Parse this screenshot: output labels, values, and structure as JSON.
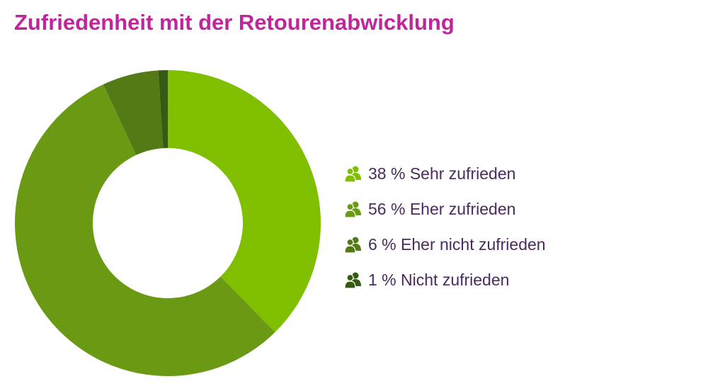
{
  "chart_data": {
    "type": "pie",
    "title": "Zufriedenheit mit der Retourenabwicklung",
    "categories": [
      "Sehr zufrieden",
      "Eher zufrieden",
      "Eher nicht zufrieden",
      "Nicht zufrieden"
    ],
    "values": [
      38,
      56,
      6,
      1
    ],
    "unit": "%",
    "colors": [
      "#80be00",
      "#6a9a14",
      "#537a14",
      "#365a12"
    ],
    "legend": [
      {
        "label": "38 % Sehr zufrieden",
        "color": "#80be00",
        "icon": "people-icon"
      },
      {
        "label": "56 % Eher zufrieden",
        "color": "#6a9a14",
        "icon": "people-icon"
      },
      {
        "label": "6 % Eher nicht zufrieden",
        "color": "#537a14",
        "icon": "people-icon"
      },
      {
        "label": "1 % Nicht zufrieden",
        "color": "#365a12",
        "icon": "people-icon"
      }
    ],
    "legend_position": "right",
    "donut": true
  }
}
